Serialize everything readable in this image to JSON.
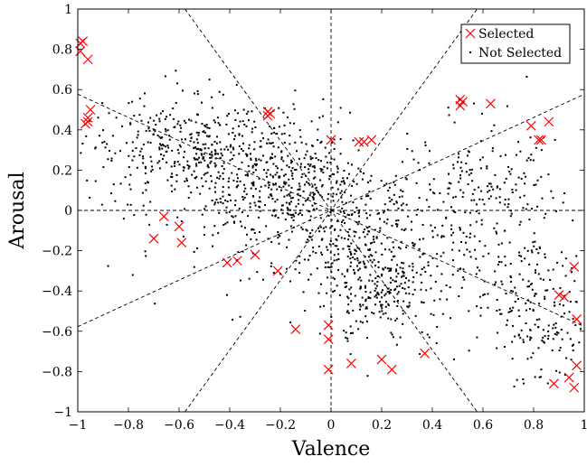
{
  "chart_data": {
    "type": "scatter",
    "xlabel": "Valence",
    "ylabel": "Arousal",
    "xlim": [
      -1,
      1
    ],
    "ylim": [
      -1,
      1
    ],
    "x_ticks": [
      "−1",
      "−0.8",
      "−0.6",
      "−0.4",
      "−0.2",
      "0",
      "0.2",
      "0.4",
      "0.6",
      "0.8",
      "1"
    ],
    "y_ticks": [
      "−1",
      "−0.8",
      "−0.6",
      "−0.4",
      "−0.2",
      "0",
      "0.2",
      "0.4",
      "0.6",
      "0.8",
      "1"
    ],
    "grid": false,
    "legend_position": "top-right",
    "reference_lines": [
      {
        "x1": -1,
        "y1": 0,
        "x2": 1,
        "y2": 0
      },
      {
        "x1": 0,
        "y1": -1,
        "x2": 0,
        "y2": 1
      },
      {
        "x1": -1,
        "y1": 0.577,
        "x2": 1,
        "y2": -0.577
      },
      {
        "x1": -1,
        "y1": -0.577,
        "x2": 1,
        "y2": 0.577
      },
      {
        "x1": -0.577,
        "y1": 1,
        "x2": 0.577,
        "y2": -1
      },
      {
        "x1": -0.577,
        "y1": -1,
        "x2": 0.577,
        "y2": 1
      }
    ],
    "series": [
      {
        "name": "Selected",
        "marker": "x",
        "color": "#ff0000",
        "points": [
          [
            -0.99,
            0.83
          ],
          [
            -0.98,
            0.84
          ],
          [
            -0.99,
            0.79
          ],
          [
            -0.96,
            0.75
          ],
          [
            -0.95,
            0.5
          ],
          [
            -0.96,
            0.46
          ],
          [
            -0.97,
            0.43
          ],
          [
            -0.96,
            0.44
          ],
          [
            -0.25,
            0.49
          ],
          [
            -0.25,
            0.47
          ],
          [
            -0.24,
            0.48
          ],
          [
            0.0,
            0.35
          ],
          [
            0.11,
            0.34
          ],
          [
            0.13,
            0.34
          ],
          [
            0.16,
            0.35
          ],
          [
            0.51,
            0.55
          ],
          [
            0.51,
            0.52
          ],
          [
            0.52,
            0.54
          ],
          [
            0.63,
            0.53
          ],
          [
            0.79,
            0.42
          ],
          [
            0.82,
            0.35
          ],
          [
            0.83,
            0.35
          ],
          [
            0.86,
            0.44
          ],
          [
            -0.66,
            -0.03
          ],
          [
            -0.6,
            -0.08
          ],
          [
            -0.59,
            -0.16
          ],
          [
            -0.7,
            -0.14
          ],
          [
            -0.41,
            -0.26
          ],
          [
            -0.37,
            -0.25
          ],
          [
            -0.3,
            -0.22
          ],
          [
            -0.21,
            -0.3
          ],
          [
            -0.14,
            -0.59
          ],
          [
            -0.01,
            -0.57
          ],
          [
            -0.01,
            -0.64
          ],
          [
            -0.01,
            -0.79
          ],
          [
            0.08,
            -0.76
          ],
          [
            0.2,
            -0.74
          ],
          [
            0.24,
            -0.79
          ],
          [
            0.37,
            -0.71
          ],
          [
            0.9,
            -0.42
          ],
          [
            0.92,
            -0.43
          ],
          [
            0.96,
            -0.28
          ],
          [
            0.97,
            -0.54
          ],
          [
            0.97,
            -0.77
          ],
          [
            0.88,
            -0.86
          ],
          [
            0.94,
            -0.83
          ],
          [
            0.96,
            -0.88
          ]
        ]
      },
      {
        "name": "Not Selected",
        "marker": "dot",
        "color": "#000000",
        "generated": true,
        "count": 1800
      }
    ]
  }
}
